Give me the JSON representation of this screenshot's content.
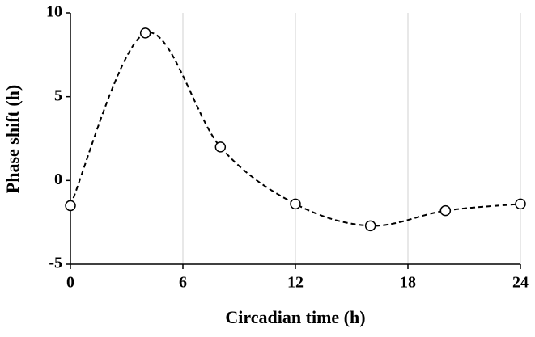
{
  "chart_data": {
    "type": "line",
    "x_label": "Circadian time (h)",
    "y_label": "Phase shift (h)",
    "x": [
      0,
      4,
      8,
      12,
      16,
      20,
      24
    ],
    "series": [
      {
        "values": [
          -1.5,
          8.8,
          2,
          -1.4,
          -2.7,
          -1.8,
          -1.4
        ],
        "color": "#000000",
        "marker_fill": "#ffffff"
      }
    ],
    "xlim": [
      0,
      24
    ],
    "xticks": [
      0,
      6,
      12,
      18,
      24
    ],
    "ylim": [
      -5,
      10
    ],
    "yticks": [
      -5,
      0,
      5,
      10
    ],
    "grid": "x",
    "line_style": "dashed",
    "smooth": true
  }
}
